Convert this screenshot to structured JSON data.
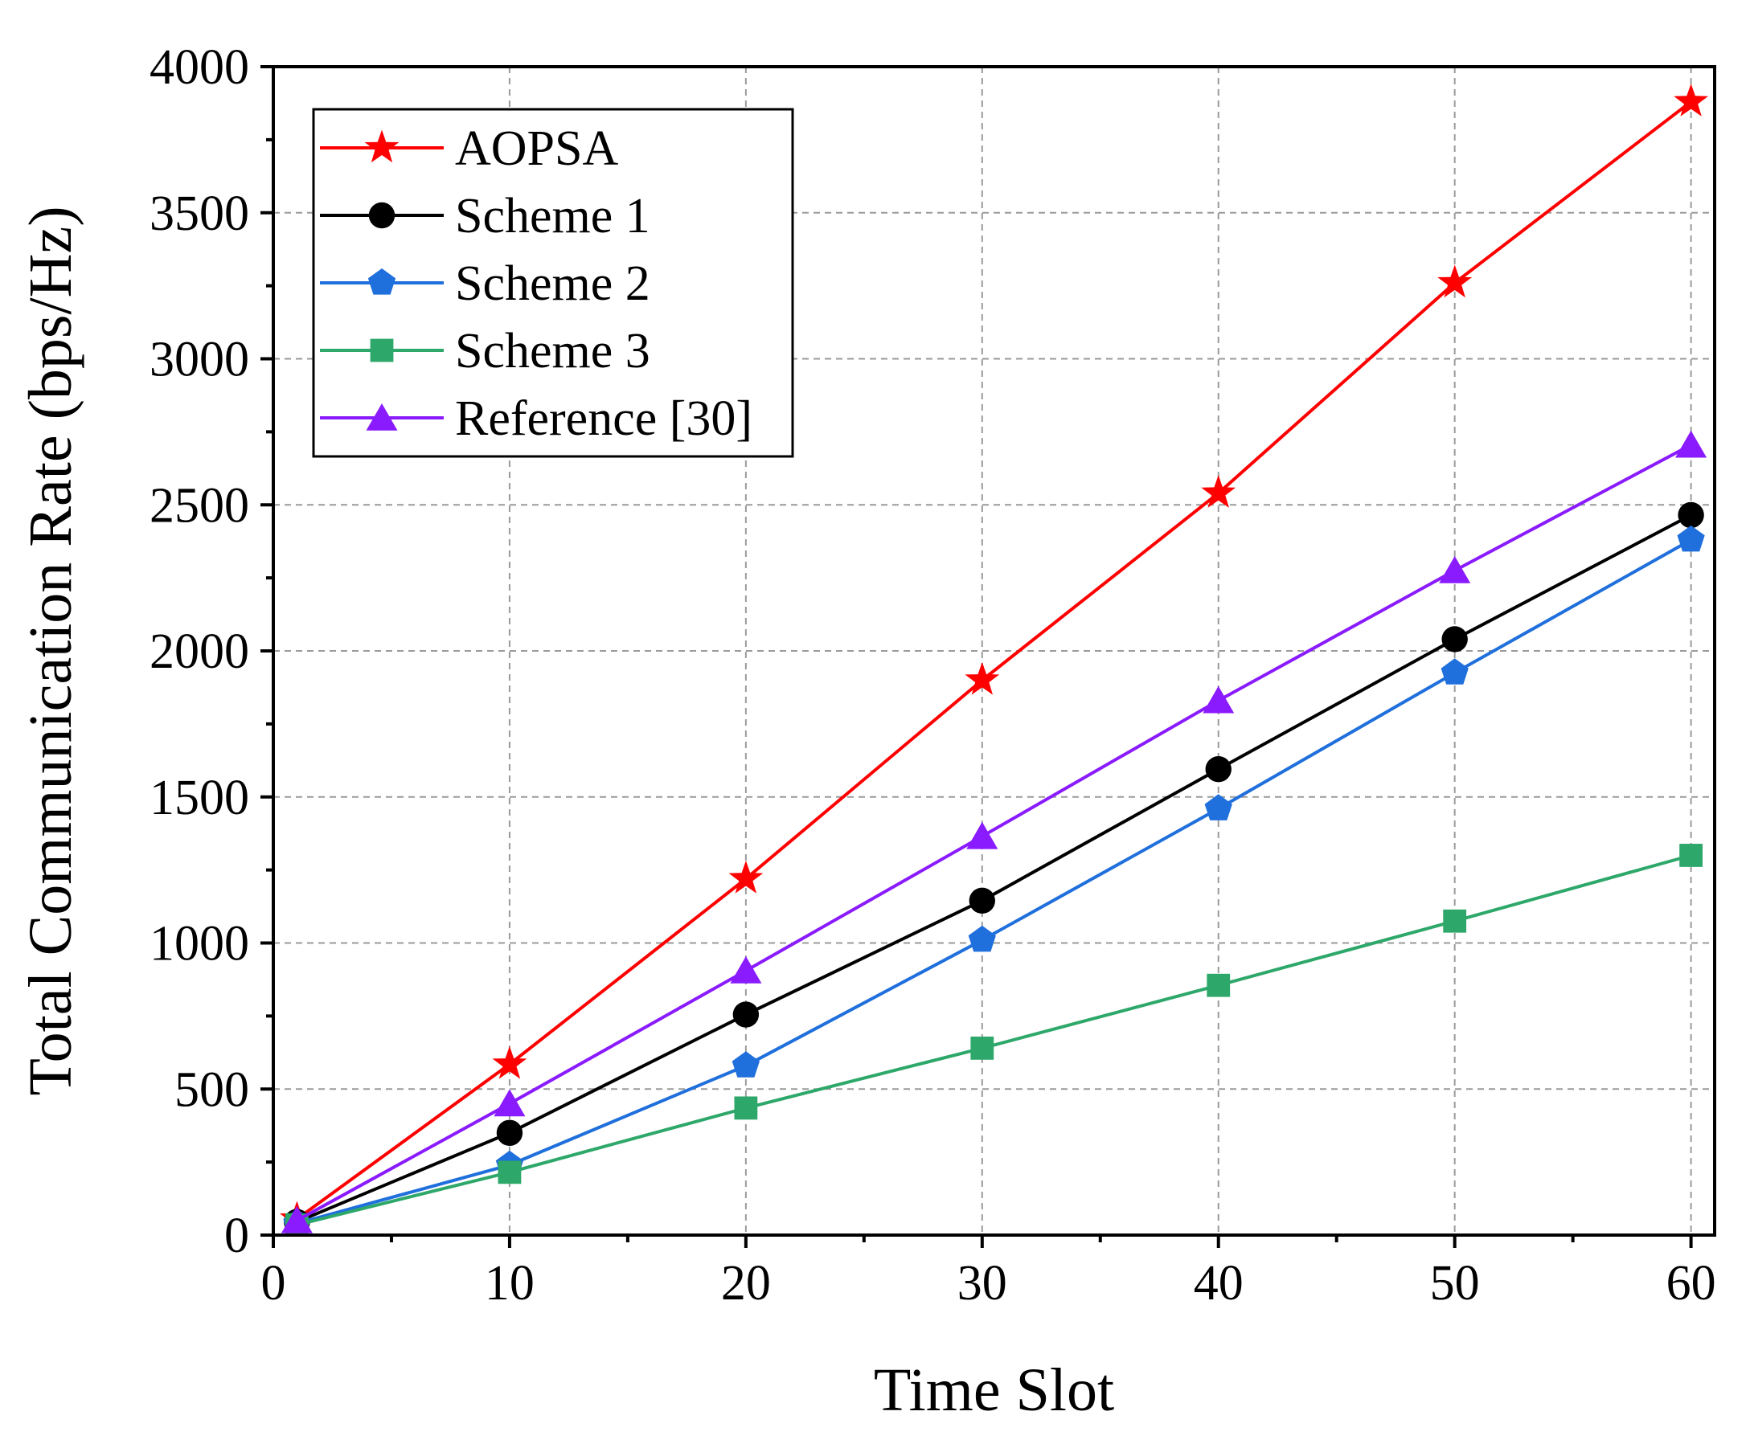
{
  "chart_data": {
    "type": "line",
    "title": "",
    "xlabel": "Time Slot",
    "ylabel": "Total Communication Rate (bps/Hz)",
    "xlim": [
      0,
      61
    ],
    "ylim": [
      0,
      4000
    ],
    "xticks": [
      0,
      10,
      20,
      30,
      40,
      50,
      60
    ],
    "yticks": [
      0,
      500,
      1000,
      1500,
      2000,
      2500,
      3000,
      3500,
      4000
    ],
    "grid": true,
    "legend_position": "top-left",
    "x": [
      1,
      10,
      20,
      30,
      40,
      50,
      60
    ],
    "series": [
      {
        "name": "AOPSA",
        "color": "#ff0000",
        "marker": "star",
        "values": [
          55,
          585,
          1220,
          1900,
          2540,
          3260,
          3880
        ]
      },
      {
        "name": "Scheme 1",
        "color": "#000000",
        "marker": "circle",
        "values": [
          45,
          350,
          755,
          1145,
          1595,
          2040,
          2465
        ]
      },
      {
        "name": "Scheme 2",
        "color": "#1f6fdc",
        "marker": "pentagon",
        "values": [
          40,
          240,
          580,
          1010,
          1460,
          1925,
          2380
        ]
      },
      {
        "name": "Scheme 3",
        "color": "#2ea86a",
        "marker": "square",
        "values": [
          35,
          215,
          435,
          640,
          855,
          1075,
          1300
        ]
      },
      {
        "name": "Reference [30]",
        "color": "#8a1bff",
        "marker": "triangle",
        "values": [
          50,
          450,
          905,
          1365,
          1830,
          2275,
          2705
        ]
      }
    ]
  }
}
